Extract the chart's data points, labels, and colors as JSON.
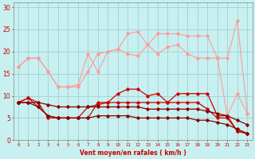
{
  "x": [
    0,
    1,
    2,
    3,
    4,
    5,
    6,
    7,
    8,
    9,
    10,
    11,
    12,
    13,
    14,
    15,
    16,
    17,
    18,
    19,
    20,
    21,
    22,
    23
  ],
  "background_color": "#c8f0f0",
  "grid_color": "#a0d0d0",
  "xlabel": "Vent moyen/en rafales ( km/h )",
  "xlabel_color": "#cc0000",
  "tick_color": "#cc0000",
  "ylim": [
    0,
    31
  ],
  "yticks": [
    0,
    5,
    10,
    15,
    20,
    25,
    30
  ],
  "series": [
    {
      "data": [
        16.5,
        18.5,
        18.5,
        15.5,
        12.0,
        12.0,
        12.0,
        15.5,
        19.5,
        20.0,
        20.5,
        24.0,
        24.5,
        21.5,
        24.0,
        24.0,
        24.0,
        23.5,
        23.5,
        23.5,
        18.5,
        18.5,
        27.0,
        6.0
      ],
      "color": "#ff9999",
      "marker": "D",
      "markersize": 1.8,
      "linewidth": 0.8
    },
    {
      "data": [
        16.5,
        18.5,
        18.5,
        15.5,
        12.0,
        12.0,
        12.5,
        19.5,
        15.5,
        20.0,
        20.5,
        19.5,
        19.0,
        21.5,
        19.5,
        21.0,
        21.5,
        19.5,
        18.5,
        18.5,
        18.5,
        5.5,
        10.5,
        6.0
      ],
      "color": "#ff9999",
      "marker": "D",
      "markersize": 1.8,
      "linewidth": 0.8
    },
    {
      "data": [
        8.5,
        9.5,
        7.5,
        5.5,
        5.0,
        5.0,
        5.0,
        7.5,
        8.0,
        8.5,
        10.5,
        11.5,
        11.5,
        10.0,
        10.5,
        8.5,
        10.5,
        10.5,
        10.5,
        10.5,
        5.5,
        5.5,
        2.0,
        1.5
      ],
      "color": "#cc0000",
      "marker": "D",
      "markersize": 1.8,
      "linewidth": 0.9
    },
    {
      "data": [
        8.5,
        9.5,
        8.5,
        5.0,
        5.0,
        5.0,
        5.0,
        5.0,
        8.5,
        8.5,
        8.5,
        8.5,
        8.5,
        8.5,
        8.5,
        8.5,
        8.5,
        8.5,
        8.5,
        7.0,
        5.0,
        5.0,
        2.0,
        1.5
      ],
      "color": "#cc0000",
      "marker": "D",
      "markersize": 1.8,
      "linewidth": 0.9
    },
    {
      "data": [
        8.5,
        8.5,
        8.5,
        8.0,
        7.5,
        7.5,
        7.5,
        7.5,
        7.5,
        7.5,
        7.5,
        7.5,
        7.5,
        7.0,
        7.0,
        7.0,
        7.0,
        7.0,
        7.0,
        6.5,
        6.0,
        5.5,
        4.5,
        3.5
      ],
      "color": "#880000",
      "marker": "D",
      "markersize": 1.8,
      "linewidth": 0.9
    },
    {
      "data": [
        8.5,
        8.5,
        7.5,
        5.5,
        5.0,
        5.0,
        5.0,
        5.0,
        5.5,
        5.5,
        5.5,
        5.5,
        5.0,
        5.0,
        5.0,
        5.0,
        5.0,
        5.0,
        4.5,
        4.5,
        4.0,
        3.5,
        2.5,
        1.5
      ],
      "color": "#880000",
      "marker": "D",
      "markersize": 1.8,
      "linewidth": 0.9
    },
    {
      "data": [
        -0.4,
        -0.4,
        -0.4,
        -0.4,
        -0.4,
        -0.4,
        -0.4,
        -0.4,
        -0.4,
        -0.4,
        -0.4,
        -0.4,
        -0.4,
        -0.4,
        -0.4,
        -0.4,
        -0.4,
        -0.4,
        -0.4,
        -0.4,
        -0.4,
        -0.4,
        -0.4,
        -0.4
      ],
      "color": "#ff6666",
      "marker": "<",
      "markersize": 2.5,
      "linewidth": 0.7,
      "linestyle": "--"
    }
  ]
}
